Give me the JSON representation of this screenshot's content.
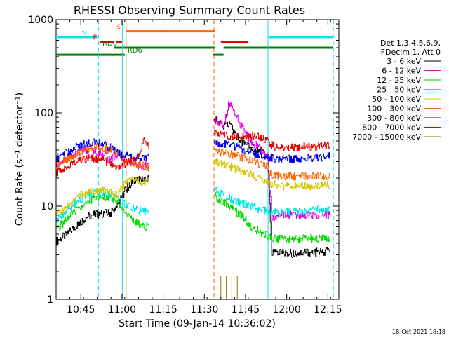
{
  "chart_data": {
    "type": "line",
    "title": "RHESSI Observing Summary Count Rates",
    "xlabel": "Start Time (09-Jan-14 10:36:02)",
    "ylabel": "Count Rate (s⁻¹ detector⁻¹)",
    "y_scale": "log",
    "ylim": [
      1,
      1000
    ],
    "xlim_minutes_after_1036": [
      0,
      103
    ],
    "x_ticks": [
      {
        "label": "10:45",
        "minute": 9
      },
      {
        "label": "11:00",
        "minute": 24
      },
      {
        "label": "11:15",
        "minute": 39
      },
      {
        "label": "11:30",
        "minute": 54
      },
      {
        "label": "11:45",
        "minute": 69
      },
      {
        "label": "12:00",
        "minute": 84
      },
      {
        "label": "12:15",
        "minute": 99
      }
    ],
    "y_ticks": [
      {
        "label": "1",
        "value": 1
      },
      {
        "label": "10",
        "value": 10
      },
      {
        "label": "100",
        "value": 100
      },
      {
        "label": "1000",
        "value": 1000
      }
    ],
    "legend_header": [
      "Det 1,3,4,5,6,9,",
      "FDecim 1, Att 0"
    ],
    "legend_position": "right",
    "series": [
      {
        "name": "3 - 6 keV",
        "color": "#000000",
        "points": [
          [
            0,
            4.2
          ],
          [
            4,
            5
          ],
          [
            8,
            6.5
          ],
          [
            12,
            8
          ],
          [
            16,
            8.3
          ],
          [
            20,
            8.5
          ],
          [
            22,
            10
          ],
          [
            24,
            13
          ],
          [
            26,
            16
          ],
          [
            28,
            18
          ],
          [
            30,
            19
          ],
          [
            32,
            19
          ],
          [
            34,
            20
          ],
          [
            37.4,
            null
          ],
          [
            57.5,
            90
          ],
          [
            59,
            80
          ],
          [
            61,
            70
          ],
          [
            63,
            75
          ],
          [
            65,
            60
          ],
          [
            67,
            50
          ],
          [
            69,
            45
          ],
          [
            71,
            43
          ],
          [
            73,
            40
          ],
          [
            75,
            38
          ],
          [
            77,
            35
          ],
          [
            78.5,
            3.2
          ],
          [
            82,
            3.2
          ],
          [
            86,
            3.1
          ],
          [
            90,
            3.2
          ],
          [
            94,
            3.2
          ],
          [
            98,
            3.2
          ],
          [
            100,
            3.3
          ]
        ]
      },
      {
        "name": "6 - 12 keV",
        "color": "#e100e1",
        "points": [
          [
            0,
            28
          ],
          [
            4,
            33
          ],
          [
            8,
            38
          ],
          [
            12,
            40
          ],
          [
            16,
            38
          ],
          [
            20,
            32
          ],
          [
            22,
            36
          ],
          [
            24,
            34
          ],
          [
            26,
            30
          ],
          [
            28,
            28
          ],
          [
            30,
            27
          ],
          [
            32,
            27
          ],
          [
            34,
            27
          ],
          [
            37.4,
            null
          ],
          [
            57.5,
            85
          ],
          [
            59,
            80
          ],
          [
            61,
            70
          ],
          [
            63,
            130
          ],
          [
            65,
            100
          ],
          [
            67,
            75
          ],
          [
            69,
            60
          ],
          [
            71,
            50
          ],
          [
            73,
            45
          ],
          [
            75,
            40
          ],
          [
            77,
            35
          ],
          [
            78.5,
            7.5
          ],
          [
            82,
            8
          ],
          [
            86,
            8
          ],
          [
            90,
            8
          ],
          [
            94,
            8
          ],
          [
            98,
            8
          ],
          [
            100,
            8
          ]
        ]
      },
      {
        "name": "12 - 25 keV",
        "color": "#00dc00",
        "points": [
          [
            0,
            5.5
          ],
          [
            4,
            7.5
          ],
          [
            8,
            9.5
          ],
          [
            12,
            11.5
          ],
          [
            16,
            12.8
          ],
          [
            20,
            12.3
          ],
          [
            22,
            11
          ],
          [
            24,
            9.5
          ],
          [
            26,
            8
          ],
          [
            28,
            7
          ],
          [
            30,
            6.5
          ],
          [
            32,
            6
          ],
          [
            34,
            6
          ],
          [
            37.4,
            null
          ],
          [
            57.5,
            13
          ],
          [
            59,
            12
          ],
          [
            61,
            11
          ],
          [
            63,
            10
          ],
          [
            65,
            9
          ],
          [
            67,
            8
          ],
          [
            69,
            7
          ],
          [
            71,
            6
          ],
          [
            73,
            5.5
          ],
          [
            75,
            5
          ],
          [
            77,
            4.8
          ],
          [
            78.5,
            4.5
          ],
          [
            82,
            4.4
          ],
          [
            86,
            4.4
          ],
          [
            90,
            4.5
          ],
          [
            94,
            4.5
          ],
          [
            98,
            4.5
          ],
          [
            100,
            4.6
          ]
        ]
      },
      {
        "name": "25 - 50 keV",
        "color": "#00e6e6",
        "points": [
          [
            0,
            7
          ],
          [
            4,
            9
          ],
          [
            8,
            11.5
          ],
          [
            12,
            13.5
          ],
          [
            16,
            14
          ],
          [
            20,
            13
          ],
          [
            22,
            12
          ],
          [
            24,
            11
          ],
          [
            26,
            10
          ],
          [
            28,
            9.5
          ],
          [
            30,
            9
          ],
          [
            32,
            9
          ],
          [
            34,
            9
          ],
          [
            37.4,
            null
          ],
          [
            57.5,
            15
          ],
          [
            59,
            14
          ],
          [
            61,
            13
          ],
          [
            63,
            12
          ],
          [
            65,
            11.5
          ],
          [
            67,
            11
          ],
          [
            69,
            10.5
          ],
          [
            71,
            10
          ],
          [
            73,
            9.5
          ],
          [
            75,
            9
          ],
          [
            77,
            8.8
          ],
          [
            78.5,
            8.5
          ],
          [
            82,
            8.5
          ],
          [
            86,
            8.7
          ],
          [
            90,
            8.9
          ],
          [
            94,
            9
          ],
          [
            98,
            9.2
          ],
          [
            100,
            9.3
          ]
        ]
      },
      {
        "name": "50 - 100 keV",
        "color": "#d2c800",
        "points": [
          [
            0,
            8
          ],
          [
            4,
            10
          ],
          [
            8,
            12.5
          ],
          [
            12,
            14.5
          ],
          [
            16,
            15
          ],
          [
            20,
            14
          ],
          [
            22,
            13
          ],
          [
            24,
            16
          ],
          [
            26,
            18
          ],
          [
            28,
            19
          ],
          [
            30,
            19
          ],
          [
            32,
            18
          ],
          [
            34,
            18
          ],
          [
            37.4,
            null
          ],
          [
            57.5,
            30
          ],
          [
            59,
            29
          ],
          [
            61,
            28
          ],
          [
            63,
            27
          ],
          [
            65,
            25
          ],
          [
            67,
            24
          ],
          [
            69,
            23
          ],
          [
            71,
            22
          ],
          [
            73,
            20
          ],
          [
            75,
            19
          ],
          [
            77,
            18
          ],
          [
            78.5,
            17
          ],
          [
            82,
            16.5
          ],
          [
            86,
            16.5
          ],
          [
            90,
            16.5
          ],
          [
            94,
            16.5
          ],
          [
            98,
            16.5
          ],
          [
            100,
            17
          ]
        ]
      },
      {
        "name": "100 - 300 keV",
        "color": "#ff6400",
        "points": [
          [
            0,
            27
          ],
          [
            4,
            32
          ],
          [
            8,
            37
          ],
          [
            12,
            42
          ],
          [
            16,
            43
          ],
          [
            20,
            40
          ],
          [
            22,
            36
          ],
          [
            24,
            33
          ],
          [
            26,
            30
          ],
          [
            28,
            29
          ],
          [
            30,
            28
          ],
          [
            32,
            27
          ],
          [
            34,
            26
          ],
          [
            37.4,
            null
          ],
          [
            57.5,
            40
          ],
          [
            59,
            38
          ],
          [
            61,
            37
          ],
          [
            63,
            36
          ],
          [
            65,
            35
          ],
          [
            67,
            34
          ],
          [
            69,
            32
          ],
          [
            71,
            30
          ],
          [
            73,
            29
          ],
          [
            75,
            27
          ],
          [
            77,
            26
          ],
          [
            78.5,
            21
          ],
          [
            82,
            21
          ],
          [
            86,
            21
          ],
          [
            90,
            21
          ],
          [
            94,
            21
          ],
          [
            98,
            21
          ],
          [
            100,
            22
          ]
        ]
      },
      {
        "name": "300 - 800 keV",
        "color": "#0000e6",
        "points": [
          [
            0,
            33
          ],
          [
            4,
            38
          ],
          [
            8,
            44
          ],
          [
            12,
            48
          ],
          [
            16,
            47
          ],
          [
            20,
            42
          ],
          [
            22,
            38
          ],
          [
            24,
            35
          ],
          [
            26,
            34
          ],
          [
            28,
            33
          ],
          [
            30,
            33
          ],
          [
            32,
            33
          ],
          [
            34,
            33
          ],
          [
            37.4,
            null
          ],
          [
            57.5,
            48
          ],
          [
            59,
            47
          ],
          [
            61,
            46
          ],
          [
            63,
            45
          ],
          [
            65,
            44
          ],
          [
            67,
            42
          ],
          [
            69,
            40
          ],
          [
            71,
            38
          ],
          [
            73,
            36
          ],
          [
            75,
            35
          ],
          [
            77,
            34
          ],
          [
            78.5,
            33
          ],
          [
            82,
            32
          ],
          [
            86,
            32
          ],
          [
            90,
            33
          ],
          [
            94,
            33
          ],
          [
            98,
            34
          ],
          [
            100,
            35
          ]
        ]
      },
      {
        "name": "800 - 7000 keV",
        "color": "#e60000",
        "points": [
          [
            0,
            23
          ],
          [
            4,
            27
          ],
          [
            8,
            31
          ],
          [
            12,
            33
          ],
          [
            16,
            32
          ],
          [
            20,
            28
          ],
          [
            22,
            27
          ],
          [
            24,
            28
          ],
          [
            26,
            30
          ],
          [
            28,
            32
          ],
          [
            30,
            35
          ],
          [
            32,
            50
          ],
          [
            34,
            42
          ],
          [
            37.4,
            null
          ],
          [
            57.5,
            62
          ],
          [
            59,
            60
          ],
          [
            61,
            58
          ],
          [
            63,
            56
          ],
          [
            65,
            55
          ],
          [
            67,
            58
          ],
          [
            69,
            57
          ],
          [
            71,
            56
          ],
          [
            73,
            55
          ],
          [
            75,
            53
          ],
          [
            77,
            50
          ],
          [
            78.5,
            45
          ],
          [
            82,
            42
          ],
          [
            86,
            42
          ],
          [
            90,
            43
          ],
          [
            94,
            43
          ],
          [
            98,
            44
          ],
          [
            100,
            45
          ]
        ]
      },
      {
        "name": "7000 - 15000 keV",
        "color": "#8c7800",
        "points": [
          [
            60,
            1.8
          ],
          [
            61,
            1
          ],
          [
            62,
            1.8
          ],
          [
            63,
            1
          ],
          [
            64,
            1.8
          ],
          [
            65,
            1
          ],
          [
            66,
            1.8
          ]
        ]
      }
    ],
    "state_bars": [
      {
        "label": "N",
        "color": "#00e6e6",
        "segments": [
          [
            0,
            15
          ],
          [
            77.5,
            101
          ]
        ],
        "value": 650
      },
      {
        "label": "S",
        "color": "#ff6400",
        "segments": [
          [
            25.5,
            58
          ]
        ],
        "value": 750
      },
      {
        "label": "F",
        "color": "#e60000",
        "segments": [
          [
            16,
            21
          ],
          [
            22,
            24
          ],
          [
            60,
            70
          ]
        ],
        "value": 580
      },
      {
        "label": "RD0",
        "color": "#008200",
        "segments": [
          [
            21,
            58
          ],
          [
            61,
            101
          ]
        ],
        "value": 500
      },
      {
        "label": "RD6",
        "color": "#008200",
        "segments": [
          [
            0,
            25
          ],
          [
            57,
            61
          ]
        ],
        "value": 420
      }
    ],
    "vertical_lines": [
      {
        "minute": 15.5,
        "color": "#00e6e6",
        "style": "dashed"
      },
      {
        "minute": 24.2,
        "color": "#00e6e6",
        "style": "solid"
      },
      {
        "minute": 25.5,
        "color": "#ff6400",
        "style": "solid"
      },
      {
        "minute": 57.5,
        "color": "#ff6400",
        "style": "dashed"
      },
      {
        "minute": 77.2,
        "color": "#00e6e6",
        "style": "solid"
      },
      {
        "minute": 101,
        "color": "#00e6e6",
        "style": "dashed"
      }
    ],
    "footer": "18-Oct-2021 18:18",
    "grid": false
  }
}
